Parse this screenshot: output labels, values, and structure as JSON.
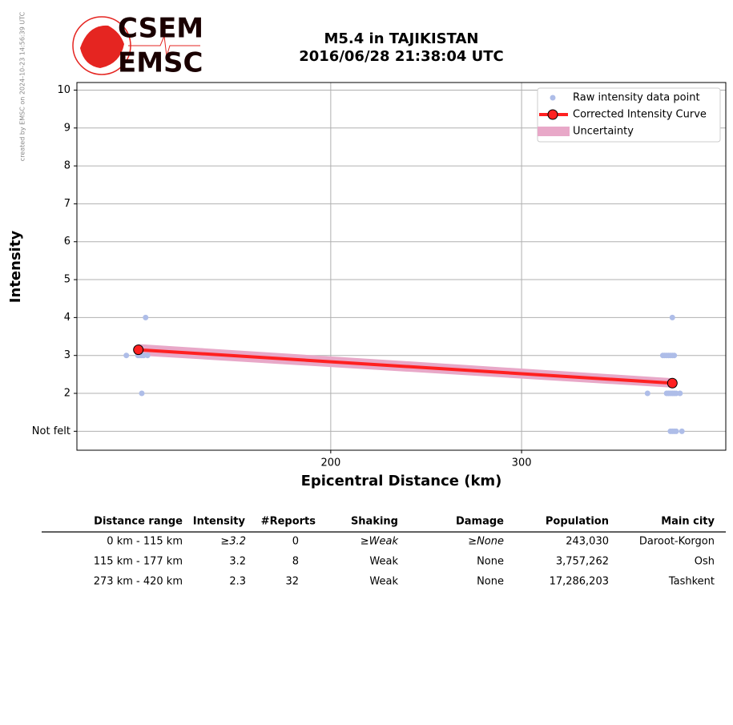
{
  "chart_data": {
    "type": "line",
    "title": "M5.4 in TAJIKISTAN",
    "subtitle": "2016/06/28 21:38:04 UTC",
    "xlabel": "Epicentral Distance (km)",
    "ylabel": "Intensity",
    "xlim": [
      67,
      407
    ],
    "xticks": [
      200,
      300
    ],
    "ylim": [
      0.5,
      10.2
    ],
    "yticks": [
      {
        "value": 1,
        "label": "Not felt"
      },
      2,
      3,
      4,
      5,
      6,
      7,
      8,
      9,
      10
    ],
    "grid": true,
    "legend": "upper right",
    "series": [
      {
        "name": "Raw intensity data point",
        "type": "scatter",
        "color": "#aebde8",
        "x": [
          92.9,
          99,
          100,
          101,
          102,
          104,
          103,
          101,
          374,
          375,
          376,
          377,
          378,
          379,
          380,
          379,
          366,
          376,
          377,
          378,
          379,
          380,
          381,
          383,
          378,
          379,
          380,
          381,
          384
        ],
        "values": [
          3,
          3,
          3,
          3,
          3,
          3,
          4,
          2,
          3,
          3,
          3,
          3,
          3,
          3,
          3,
          4,
          2,
          2,
          2,
          2,
          2,
          2,
          2,
          2,
          1,
          1,
          1,
          1,
          1
        ]
      },
      {
        "name": "Corrected Intensity Curve",
        "type": "line",
        "color": "#ff2020",
        "x": [
          99.2,
          379
        ],
        "values": [
          3.15,
          2.27
        ]
      },
      {
        "name": "Uncertainty",
        "type": "band",
        "color": "#e8a8c8",
        "x": [
          99.2,
          379
        ],
        "upper": [
          3.3,
          2.4
        ],
        "lower": [
          3.0,
          2.15
        ]
      }
    ]
  },
  "credit": "created by EMSC on 2024-10-23 14:56:39 UTC",
  "logo": {
    "top": "CSEM",
    "bottom": "EMSC"
  },
  "table": {
    "headers": [
      "Distance range",
      "Intensity",
      "#Reports",
      "Shaking",
      "Damage",
      "Population",
      "Main city"
    ],
    "rows": [
      [
        "0 km -  115 km",
        "≥3.2",
        "0",
        "≥Weak",
        "≥None",
        "243,030",
        "Daroot-Korgon"
      ],
      [
        "115 km -  177 km",
        "3.2",
        "8",
        "Weak",
        "None",
        "3,757,262",
        "Osh"
      ],
      [
        "273 km -  420 km",
        "2.3",
        "32",
        "Weak",
        "None",
        "17,286,203",
        "Tashkent"
      ]
    ]
  }
}
